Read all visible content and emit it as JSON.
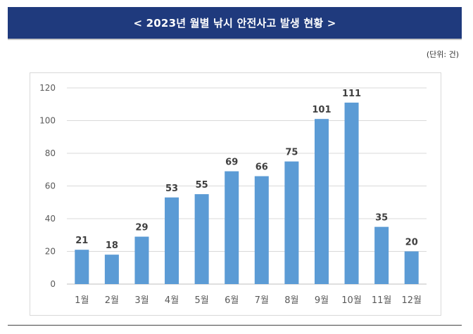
{
  "header": {
    "title": "< 2023년 월별 낚시 안전사고 발생 현황 >"
  },
  "unit_label": "(단위: 건)",
  "colors": {
    "header_bg": "#1f3a7d",
    "bar": "#5b9bd5",
    "grid": "#d9d9d9",
    "text": "#595959",
    "data_label": "#404040"
  },
  "chart_data": {
    "type": "bar",
    "title": "< 2023년 월별 낚시 안전사고 발생 현황 >",
    "xlabel": "",
    "ylabel": "",
    "unit": "(단위: 건)",
    "categories": [
      "1월",
      "2월",
      "3월",
      "4월",
      "5월",
      "6월",
      "7월",
      "8월",
      "9월",
      "10월",
      "11월",
      "12월"
    ],
    "values": [
      21,
      18,
      29,
      53,
      55,
      69,
      66,
      75,
      101,
      111,
      35,
      20
    ],
    "ylim": [
      0,
      120
    ],
    "yticks": [
      "0",
      "20",
      "40",
      "60",
      "80",
      "100",
      "120"
    ],
    "grid": true,
    "legend": "none"
  }
}
